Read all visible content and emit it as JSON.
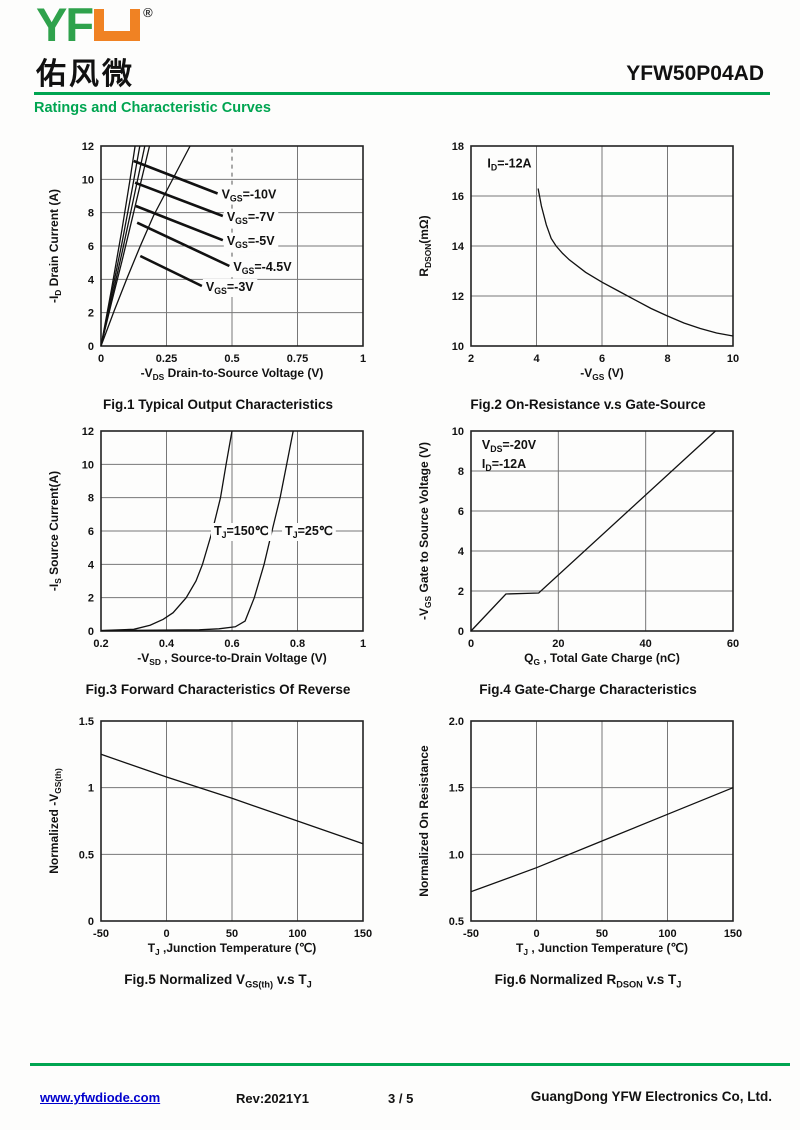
{
  "header": {
    "logo_green": "YF",
    "registered": "®",
    "logo_cn": "佑风微",
    "part_number": "YFW50P04AD",
    "section_title": "Ratings and Characteristic Curves"
  },
  "footer": {
    "website": "www.yfwdiode.com",
    "rev": "Rev:2021Y1",
    "page_indicator": "3 / 5",
    "company": "GuangDong YFW Electronics Co, Ltd."
  },
  "colors": {
    "brand_green": "#00a551",
    "logo_green": "#2fa24c",
    "logo_orange": "#f08223",
    "link_blue": "#0000cc",
    "curve_black": "#111111",
    "grid_gray": "#777777"
  },
  "chart_data": [
    {
      "id": "fig1",
      "type": "line",
      "caption": "Fig.1 Typical Output Characteristics",
      "xlabel": "-V~DS~ Drain-to-Source Voltage (V)",
      "ylabel": "-I~D~ Drain Current (A)",
      "xlim": [
        0,
        1
      ],
      "ylim": [
        0,
        12
      ],
      "grid": true,
      "xticks": [
        0,
        0.25,
        0.5,
        0.75,
        1
      ],
      "xtick_labels": [
        "0",
        "0.25",
        "0.5",
        "0.75",
        "1"
      ],
      "yticks": [
        0,
        2,
        4,
        6,
        8,
        10,
        12
      ],
      "ytick_labels": [
        "0",
        "2",
        "4",
        "6",
        "8",
        "10",
        "12"
      ],
      "dashed_vline": {
        "x": 0.5,
        "y1": 4.4,
        "y2": 12
      },
      "series": [
        {
          "name": "VGS=-10V",
          "points": [
            [
              0,
              0
            ],
            [
              0.04,
              3.4
            ],
            [
              0.08,
              7.0
            ],
            [
              0.11,
              9.9
            ],
            [
              0.13,
              12
            ]
          ]
        },
        {
          "name": "VGS=-7V",
          "points": [
            [
              0,
              0
            ],
            [
              0.04,
              3.1
            ],
            [
              0.08,
              6.2
            ],
            [
              0.12,
              9.5
            ],
            [
              0.148,
              12
            ]
          ]
        },
        {
          "name": "VGS=-5V",
          "points": [
            [
              0,
              0
            ],
            [
              0.04,
              2.8
            ],
            [
              0.08,
              5.6
            ],
            [
              0.12,
              8.5
            ],
            [
              0.167,
              12
            ]
          ]
        },
        {
          "name": "VGS=-4.5V",
          "points": [
            [
              0,
              0
            ],
            [
              0.04,
              2.6
            ],
            [
              0.08,
              5.1
            ],
            [
              0.12,
              7.7
            ],
            [
              0.185,
              12
            ]
          ]
        },
        {
          "name": "VGS=-3V",
          "points": [
            [
              0,
              0
            ],
            [
              0.05,
              2.1
            ],
            [
              0.1,
              4.1
            ],
            [
              0.15,
              6.0
            ],
            [
              0.2,
              7.8
            ],
            [
              0.25,
              9.3
            ],
            [
              0.3,
              10.8
            ],
            [
              0.34,
              12
            ]
          ]
        }
      ],
      "labels": [
        {
          "text": "V~GS~=-10V",
          "lx": 0.445,
          "ly": 9.15,
          "tx": 0.125,
          "ty": 11.1
        },
        {
          "text": "V~GS~=-7V",
          "lx": 0.465,
          "ly": 7.8,
          "tx": 0.13,
          "ty": 9.8
        },
        {
          "text": "V~GS~=-5V",
          "lx": 0.465,
          "ly": 6.35,
          "tx": 0.133,
          "ty": 8.4
        },
        {
          "text": "V~GS~=-4.5V",
          "lx": 0.49,
          "ly": 4.8,
          "tx": 0.138,
          "ty": 7.4
        },
        {
          "text": "V~GS~=-3V",
          "lx": 0.385,
          "ly": 3.6,
          "tx": 0.15,
          "ty": 5.4
        }
      ]
    },
    {
      "id": "fig2",
      "type": "line",
      "caption": "Fig.2 On-Resistance v.s Gate-Source",
      "xlabel": "-V~GS~ (V)",
      "ylabel": "R~DSON~(mΩ)",
      "xlim": [
        2,
        10
      ],
      "ylim": [
        10,
        18
      ],
      "grid": true,
      "xticks": [
        2,
        4,
        6,
        8,
        10
      ],
      "xtick_labels": [
        "2",
        "4",
        "6",
        "8",
        "10"
      ],
      "yticks": [
        10,
        12,
        14,
        16,
        18
      ],
      "ytick_labels": [
        "10",
        "12",
        "14",
        "16",
        "18"
      ],
      "notes": [
        {
          "text": "I~D~=-12A",
          "x": 2.5,
          "y": 17.3
        }
      ],
      "series": [
        {
          "name": "RDSON",
          "points": [
            [
              4.05,
              16.3
            ],
            [
              4.15,
              15.6
            ],
            [
              4.3,
              14.85
            ],
            [
              4.45,
              14.3
            ],
            [
              4.6,
              14.0
            ],
            [
              4.8,
              13.7
            ],
            [
              5,
              13.45
            ],
            [
              5.5,
              12.95
            ],
            [
              6,
              12.55
            ],
            [
              6.5,
              12.2
            ],
            [
              7,
              11.85
            ],
            [
              7.5,
              11.5
            ],
            [
              8,
              11.2
            ],
            [
              8.5,
              10.92
            ],
            [
              9,
              10.7
            ],
            [
              9.5,
              10.52
            ],
            [
              10,
              10.4
            ]
          ]
        }
      ]
    },
    {
      "id": "fig3",
      "type": "line",
      "caption": "Fig.3 Forward Characteristics Of Reverse",
      "xlabel": "-V~SD~ , Source-to-Drain Voltage (V)",
      "ylabel": "-I~S~ Source Current(A)",
      "xlim": [
        0.2,
        1
      ],
      "ylim": [
        0,
        12
      ],
      "grid": true,
      "xticks": [
        0.2,
        0.4,
        0.6,
        0.8,
        1
      ],
      "xtick_labels": [
        "0.2",
        "0.4",
        "0.6",
        "0.8",
        "1"
      ],
      "yticks": [
        0,
        2,
        4,
        6,
        8,
        10,
        12
      ],
      "ytick_labels": [
        "0",
        "2",
        "4",
        "6",
        "8",
        "10",
        "12"
      ],
      "notes": [
        {
          "text": "T~J~=150℃",
          "x": 0.545,
          "y": 6,
          "bg": true
        },
        {
          "text": "T~J~=25℃",
          "x": 0.762,
          "y": 6,
          "bg": true
        }
      ],
      "series": [
        {
          "name": "TJ=150C",
          "points": [
            [
              0.2,
              0.03
            ],
            [
              0.3,
              0.1
            ],
            [
              0.35,
              0.35
            ],
            [
              0.39,
              0.7
            ],
            [
              0.42,
              1.1
            ],
            [
              0.46,
              2.0
            ],
            [
              0.49,
              3.0
            ],
            [
              0.51,
              4.0
            ],
            [
              0.54,
              6.0
            ],
            [
              0.565,
              8.0
            ],
            [
              0.582,
              10
            ],
            [
              0.6,
              12
            ]
          ]
        },
        {
          "name": "TJ=25C",
          "points": [
            [
              0.2,
              0.02
            ],
            [
              0.5,
              0.07
            ],
            [
              0.56,
              0.13
            ],
            [
              0.61,
              0.25
            ],
            [
              0.64,
              0.6
            ],
            [
              0.668,
              2.0
            ],
            [
              0.698,
              4.0
            ],
            [
              0.722,
              6.0
            ],
            [
              0.747,
              8.0
            ],
            [
              0.767,
              10
            ],
            [
              0.787,
              12
            ]
          ]
        }
      ]
    },
    {
      "id": "fig4",
      "type": "line",
      "caption": "Fig.4 Gate-Charge Characteristics",
      "xlabel": "Q~G~ , Total Gate Charge (nC)",
      "ylabel": "-V~GS~ Gate to Source Voltage (V)",
      "xlim": [
        0,
        60
      ],
      "ylim": [
        0,
        10
      ],
      "grid": true,
      "xticks": [
        0,
        20,
        40,
        60
      ],
      "xtick_labels": [
        "0",
        "20",
        "40",
        "60"
      ],
      "yticks": [
        0,
        2,
        4,
        6,
        8,
        10
      ],
      "ytick_labels": [
        "0",
        "2",
        "4",
        "6",
        "8",
        "10"
      ],
      "notes": [
        {
          "text": "V~DS~=-20V",
          "x": 2.5,
          "y": 9.3
        },
        {
          "text": "I~D~=-12A",
          "x": 2.5,
          "y": 8.35
        }
      ],
      "series": [
        {
          "name": "QG curve",
          "points": [
            [
              0,
              0
            ],
            [
              8,
              1.85
            ],
            [
              15.5,
              1.9
            ],
            [
              56,
              10
            ]
          ]
        }
      ]
    },
    {
      "id": "fig5",
      "type": "line",
      "caption": "Fig.5 Normalized V~GS(th)~ v.s T~J~",
      "xlabel": "T~J~ ,Junction Temperature (℃)",
      "ylabel": "Normalized -V~GS(th)~",
      "xlim": [
        -50,
        150
      ],
      "ylim": [
        0,
        1.5
      ],
      "grid": true,
      "xticks": [
        -50,
        0,
        50,
        100,
        150
      ],
      "xtick_labels": [
        "-50",
        "0",
        "50",
        "100",
        "150"
      ],
      "yticks": [
        0,
        0.5,
        1,
        1.5
      ],
      "ytick_labels": [
        "0",
        "0.5",
        "1",
        "1.5"
      ],
      "series": [
        {
          "name": "Normalized VGS(th)",
          "points": [
            [
              -50,
              1.25
            ],
            [
              0,
              1.08
            ],
            [
              50,
              0.92
            ],
            [
              100,
              0.75
            ],
            [
              150,
              0.58
            ]
          ]
        }
      ]
    },
    {
      "id": "fig6",
      "type": "line",
      "caption": "Fig.6 Normalized R~DSON~ v.s T~J~",
      "xlabel": "T~J~ , Junction Temperature (℃)",
      "ylabel": "Normalized On Resistance",
      "xlim": [
        -50,
        150
      ],
      "ylim": [
        0.5,
        2
      ],
      "grid": true,
      "xticks": [
        -50,
        0,
        50,
        100,
        150
      ],
      "xtick_labels": [
        "-50",
        "0",
        "50",
        "100",
        "150"
      ],
      "yticks": [
        0.5,
        1,
        1.5,
        2
      ],
      "ytick_labels": [
        "0.5",
        "1.0",
        "1.5",
        "2.0"
      ],
      "series": [
        {
          "name": "Normalized RDSON",
          "points": [
            [
              -50,
              0.72
            ],
            [
              0,
              0.9
            ],
            [
              50,
              1.1
            ],
            [
              100,
              1.3
            ],
            [
              150,
              1.5
            ]
          ]
        }
      ]
    }
  ]
}
